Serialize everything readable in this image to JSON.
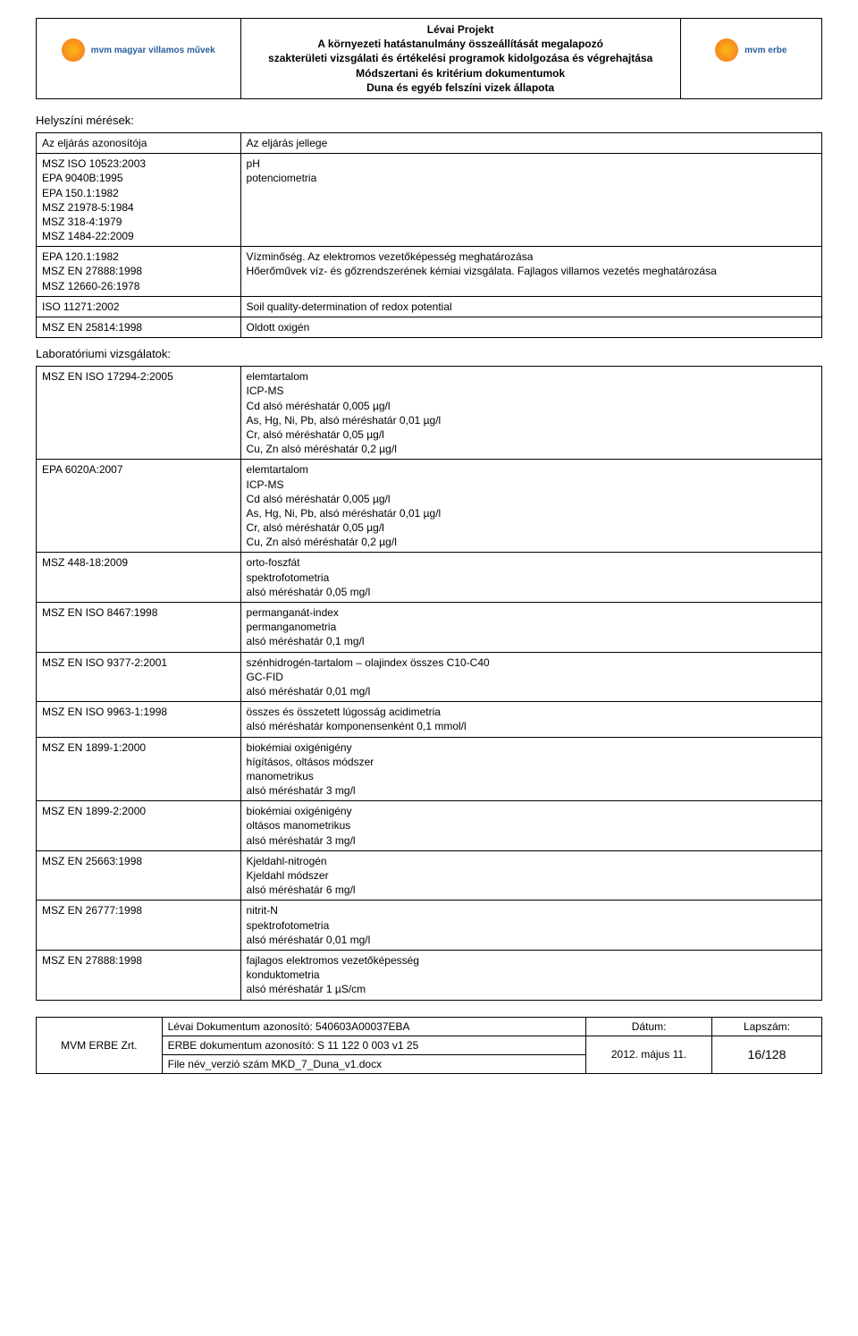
{
  "header": {
    "logo_left_text": "mvm magyar villamos művek",
    "logo_right_text": "mvm erbe",
    "title_lines": [
      "Lévai Projekt",
      "A környezeti hatástanulmány összeállítását megalapozó",
      "szakterületi vizsgálati és értékelési programok kidolgozása és végrehajtása",
      "Módszertani és kritérium dokumentumok",
      "Duna és egyéb felszíni vizek állapota"
    ]
  },
  "section1_title": "Helyszíni mérések:",
  "table1": {
    "rows": [
      {
        "c1": "Az eljárás azonosítója",
        "c2": "Az eljárás jellege"
      },
      {
        "c1": "MSZ ISO 10523:2003\nEPA 9040B:1995\nEPA 150.1:1982\nMSZ 21978-5:1984\nMSZ 318-4:1979\nMSZ 1484-22:2009",
        "c2": "pH\npotenciometria"
      },
      {
        "c1": "EPA 120.1:1982\nMSZ EN 27888:1998\nMSZ 12660-26:1978",
        "c2": "Vízminőség. Az elektromos vezetőképesség meghatározása\nHőerőművek víz- és gőzrendszerének kémiai vizsgálata. Fajlagos villamos vezetés meghatározása"
      },
      {
        "c1": "ISO 11271:2002",
        "c2": "Soil quality-determination of redox potential"
      },
      {
        "c1": "MSZ EN 25814:1998",
        "c2": "Oldott oxigén"
      }
    ]
  },
  "section2_title": "Laboratóriumi vizsgálatok:",
  "table2": {
    "rows": [
      {
        "c1": "MSZ EN ISO 17294-2:2005",
        "c2": "elemtartalom\nICP-MS\nCd          alsó méréshatár 0,005 µg/l\nAs, Hg, Ni, Pb,          alsó méréshatár 0,01 µg/l\nCr,          alsó méréshatár 0,05 µg/l\nCu, Zn          alsó méréshatár 0,2 µg/l"
      },
      {
        "c1": "EPA 6020A:2007",
        "c2": "elemtartalom\nICP-MS\nCd          alsó méréshatár 0,005 µg/l\nAs, Hg, Ni, Pb,          alsó méréshatár 0,01 µg/l\nCr,          alsó méréshatár 0,05 µg/l\nCu, Zn          alsó méréshatár 0,2 µg/l"
      },
      {
        "c1": "MSZ 448-18:2009",
        "c2": "orto-foszfát\nspektrofotometria\nalsó méréshatár 0,05 mg/l"
      },
      {
        "c1": "MSZ EN ISO 8467:1998",
        "c2": "permanganát-index\npermanganometria\nalsó méréshatár 0,1 mg/l"
      },
      {
        "c1": "MSZ EN ISO 9377-2:2001",
        "c2": "szénhidrogén-tartalom – olajindex összes C10-C40\nGC-FID\nalsó méréshatár 0,01 mg/l"
      },
      {
        "c1": "MSZ EN ISO 9963-1:1998",
        "c2": "összes és összetett lúgosság acidimetria\nalsó méréshatár komponensenként 0,1 mmol/l"
      },
      {
        "c1": "MSZ EN 1899-1:2000",
        "c2": "biokémiai oxigénigény\nhígításos, oltásos módszer\nmanometrikus\nalsó méréshatár 3 mg/l"
      },
      {
        "c1": "MSZ EN 1899-2:2000",
        "c2": "biokémiai oxigénigény\noltásos manometrikus\nalsó méréshatár 3 mg/l"
      },
      {
        "c1": "MSZ EN 25663:1998",
        "c2": "Kjeldahl-nitrogén\nKjeldahl módszer\nalsó méréshatár 6 mg/l"
      },
      {
        "c1": "MSZ EN 26777:1998",
        "c2": "nitrit-N\nspektrofotometria\nalsó méréshatár 0,01 mg/l"
      },
      {
        "c1": "MSZ EN 27888:1998",
        "c2": "fajlagos elektromos vezetőképesség\nkonduktometria\nalsó méréshatár 1 µS/cm"
      }
    ]
  },
  "footer": {
    "company": "MVM ERBE Zrt.",
    "doc_id_label": "Lévai Dokumentum azonosító: 540603A00037EBA",
    "erbe_id": "ERBE dokumentum azonosító: S 11 122 0 003 v1 25",
    "file": "File név_verzió szám MKD_7_Duna_v1.docx",
    "date_label": "Dátum:",
    "date_value": "2012. május 11.",
    "page_label": "Lapszám:",
    "page_value": "16/128"
  }
}
